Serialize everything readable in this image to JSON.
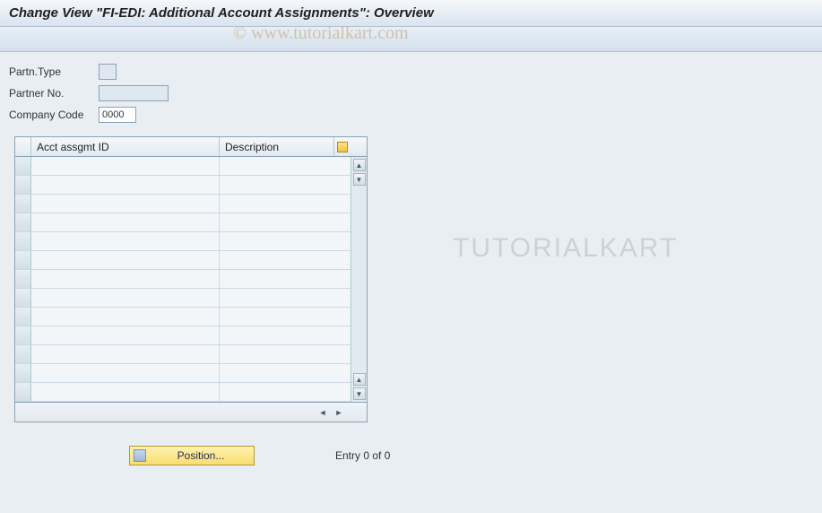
{
  "title": "Change View \"FI-EDI: Additional Account Assignments\": Overview",
  "watermark": "© www.tutorialkart.com",
  "watermark2": "TUTORIALKART",
  "form": {
    "partn_type": {
      "label": "Partn.Type",
      "value": ""
    },
    "partner_no": {
      "label": "Partner No.",
      "value": ""
    },
    "company_code": {
      "label": "Company Code",
      "value": "0000"
    }
  },
  "table": {
    "columns": {
      "acct": "Acct assgmt ID",
      "desc": "Description"
    },
    "row_count": 13
  },
  "footer": {
    "position_button": "Position...",
    "entry_text": "Entry 0 of 0"
  },
  "colors": {
    "background": "#e8eef2",
    "titlebar_top": "#f5f8fb",
    "titlebar_bottom": "#d9e4ee",
    "border": "#8aa3b9",
    "button_bg_top": "#fff2b0",
    "button_bg_bottom": "#f7dd6f"
  }
}
